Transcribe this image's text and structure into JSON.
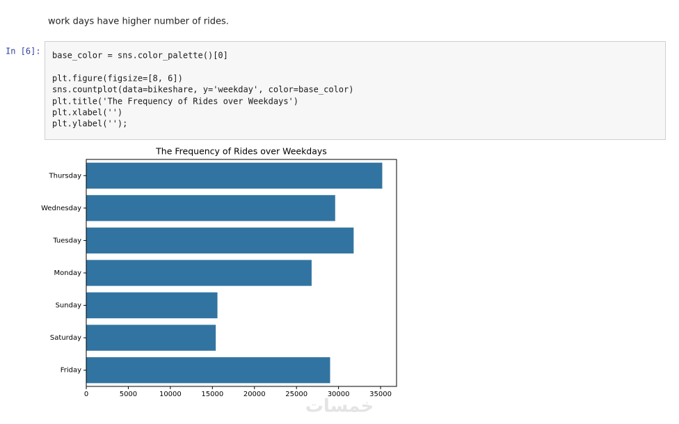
{
  "notebook": {
    "markdown": "work days have higher number of rides.",
    "prompt": "In [6]:",
    "code": [
      "base_color = sns.color_palette()[0]",
      "plt.figure(figsize=[8, 6])",
      "sns.countplot(data=bikeshare, y='weekday', color=base_color)",
      "plt.title('The Frequency of Rides over Weekdays')",
      "plt.xlabel('')",
      "plt.ylabel('');"
    ],
    "watermark": "خمسات"
  },
  "chart_data": {
    "type": "barh",
    "title": "The Frequency of Rides over Weekdays",
    "categories": [
      "Thursday",
      "Wednesday",
      "Tuesday",
      "Monday",
      "Sunday",
      "Saturday",
      "Friday"
    ],
    "values": [
      35200,
      29600,
      31800,
      26800,
      15600,
      15400,
      29000
    ],
    "color": "#3274a1",
    "xlim": [
      0,
      36900
    ],
    "xticks": [
      0,
      5000,
      10000,
      15000,
      20000,
      25000,
      30000,
      35000
    ]
  }
}
